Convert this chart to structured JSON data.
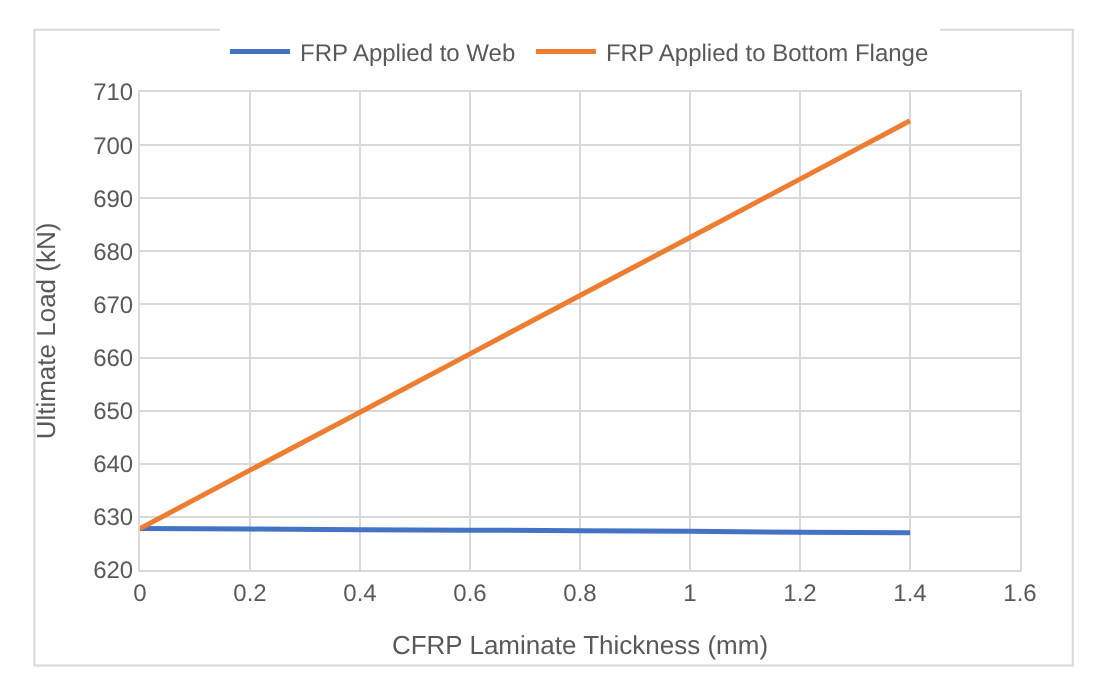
{
  "chart_data": {
    "type": "line",
    "xlabel": "CFRP Laminate Thickness (mm)",
    "ylabel": "Ultimate Load (kN)",
    "x": [
      0,
      0.2,
      0.4,
      0.6,
      0.8,
      1.0,
      1.2,
      1.4
    ],
    "series": [
      {
        "name": "FRP Applied to Web",
        "color": "#4472c4",
        "values": [
          627.8,
          627.7,
          627.6,
          627.5,
          627.4,
          627.3,
          627.1,
          627.0
        ]
      },
      {
        "name": "FRP Applied to Bottom Flange",
        "color": "#ed7d31",
        "values": [
          627.8,
          638.8,
          649.7,
          660.7,
          671.7,
          682.6,
          693.6,
          704.6
        ]
      }
    ],
    "xlim": [
      0,
      1.6
    ],
    "xticks": [
      0,
      0.2,
      0.4,
      0.6,
      0.8,
      1,
      1.2,
      1.4,
      1.6
    ],
    "ylim": [
      620,
      710
    ],
    "yticks": [
      620,
      630,
      640,
      650,
      660,
      670,
      680,
      690,
      700,
      710
    ],
    "grid": true,
    "legend": "top",
    "marker": "none",
    "line_style": "solid"
  }
}
